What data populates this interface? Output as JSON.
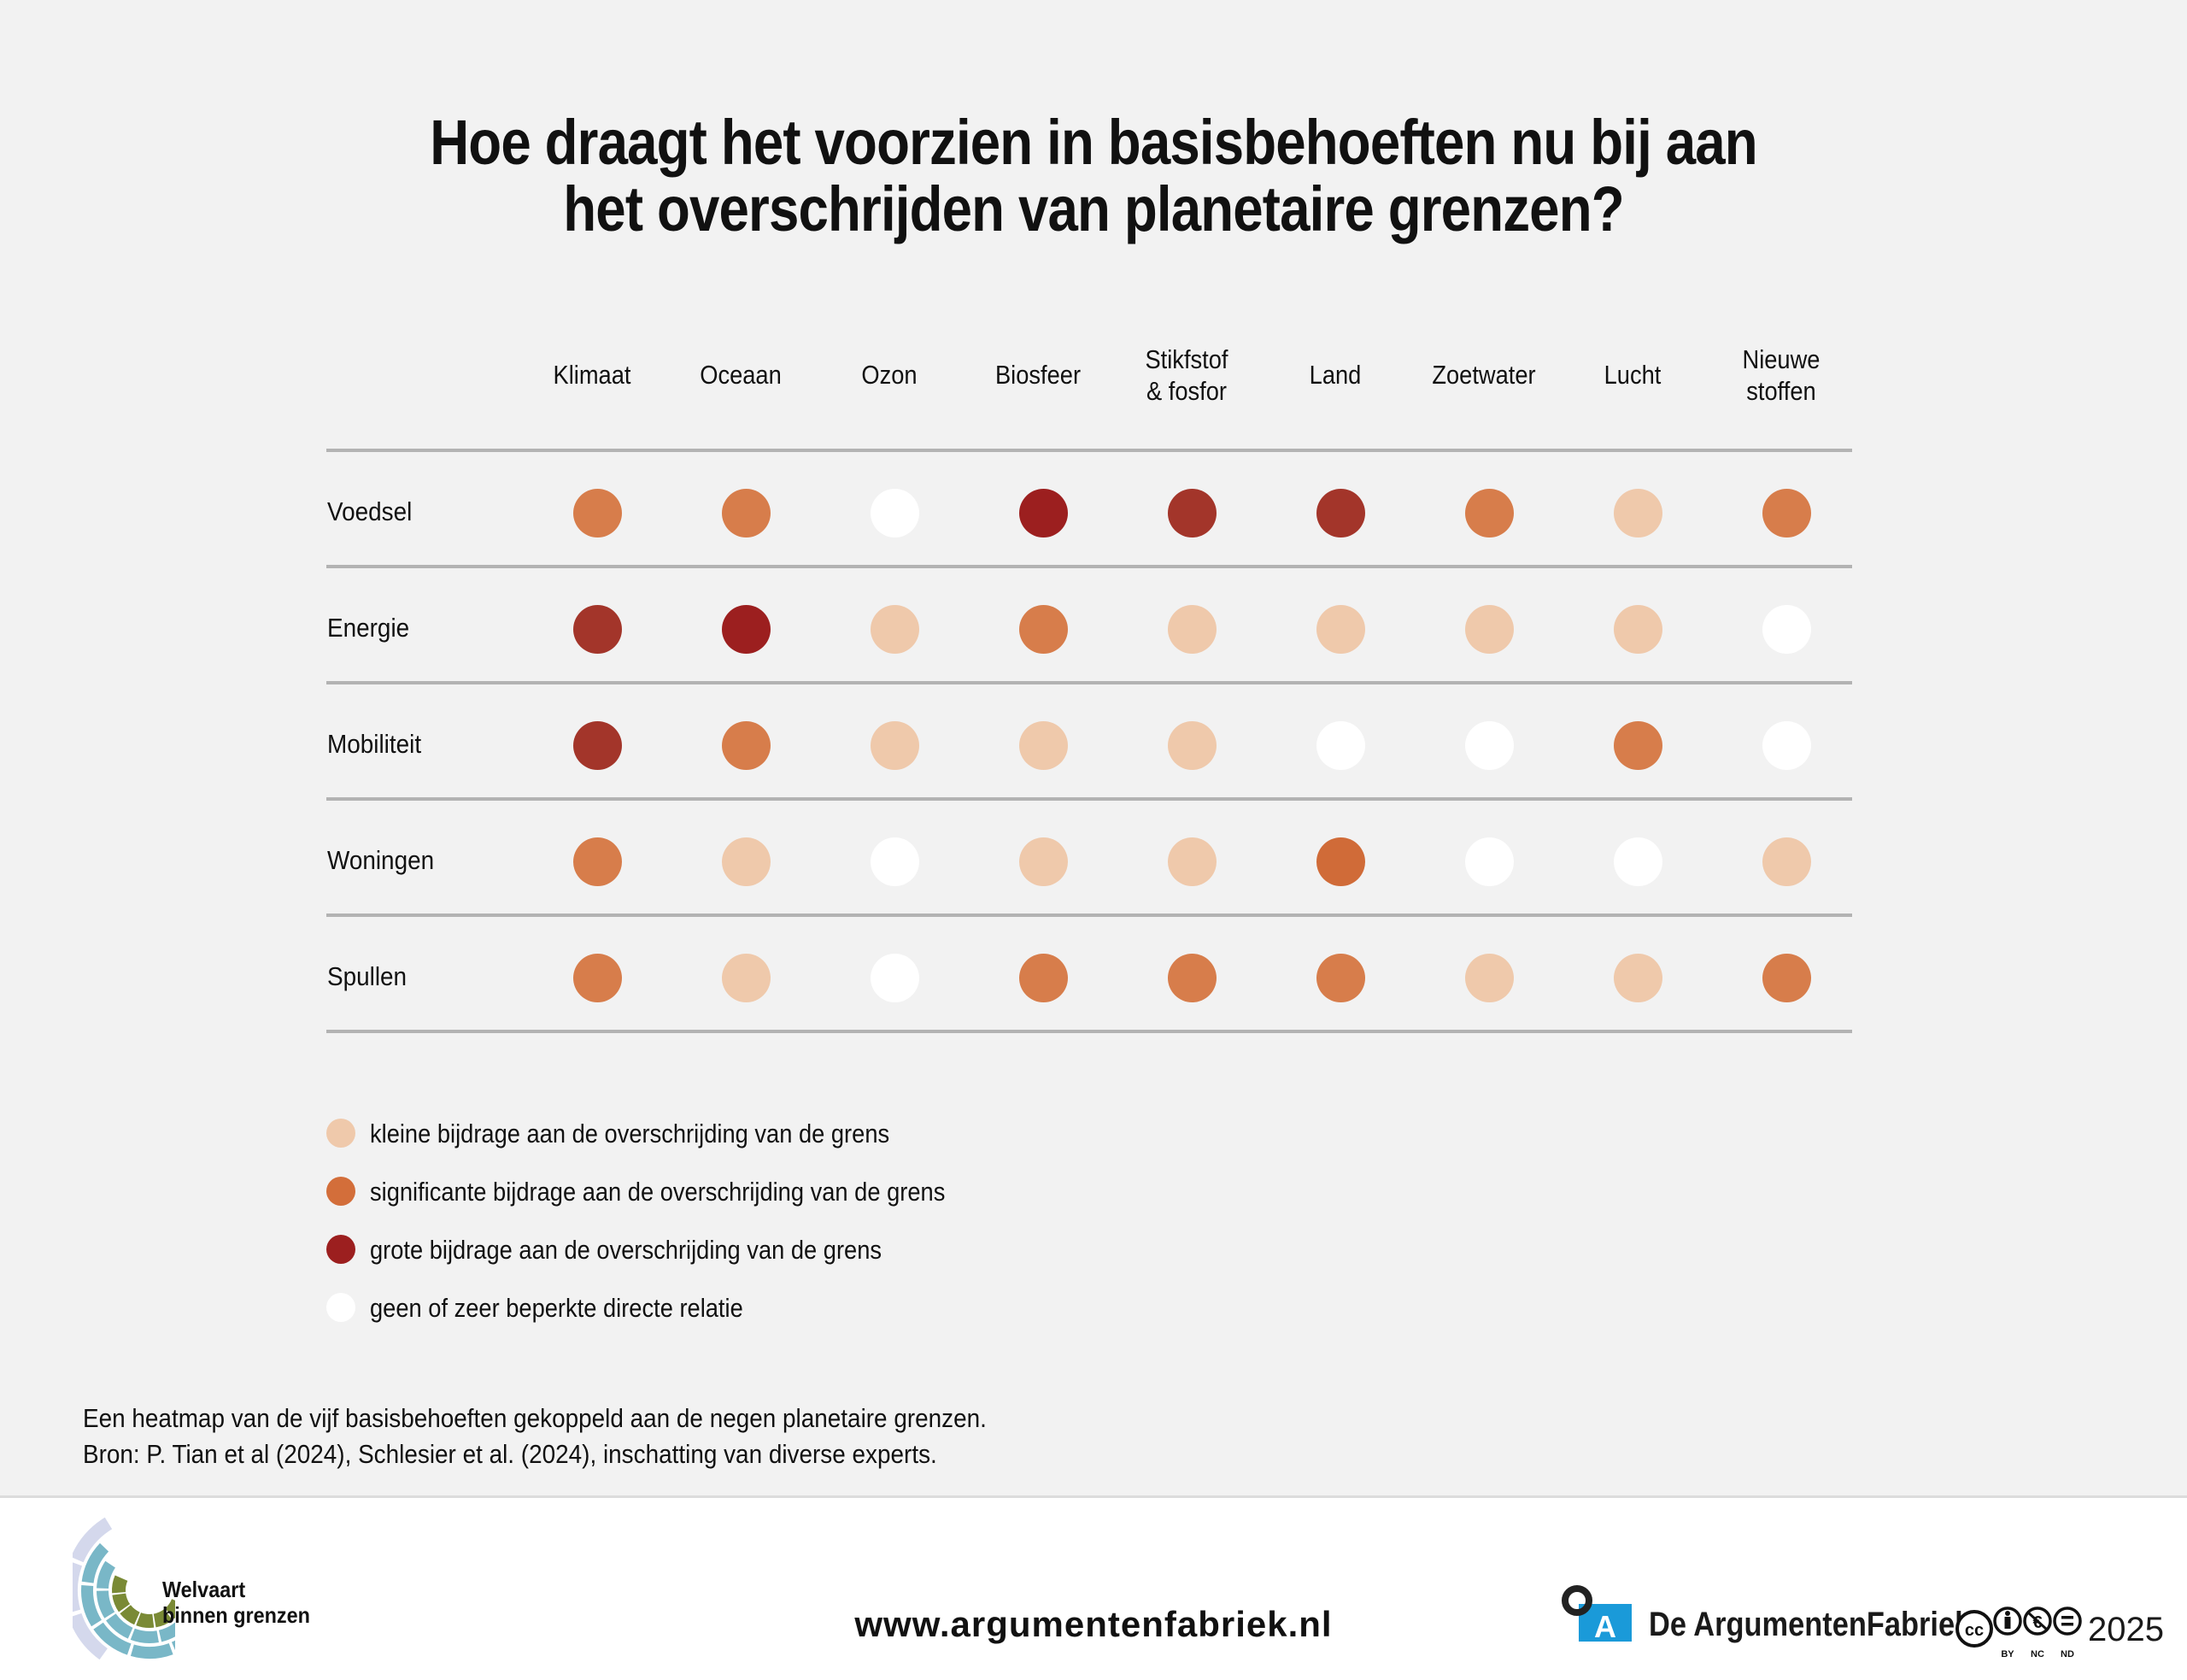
{
  "title": {
    "line1": "Hoe draagt het voorzien in basisbehoeften nu bij aan",
    "line2": "het overschrijden van planetaire grenzen?"
  },
  "chart_data": {
    "type": "heatmap",
    "title": "Hoe draagt het voorzien in basisbehoeften nu bij aan het overschrijden van planetaire grenzen?",
    "columns": [
      {
        "label_lines": [
          "Klimaat"
        ]
      },
      {
        "label_lines": [
          "Oceaan"
        ]
      },
      {
        "label_lines": [
          "Ozon"
        ]
      },
      {
        "label_lines": [
          "Biosfeer"
        ]
      },
      {
        "label_lines": [
          "Stikfstof",
          "& fosfor"
        ]
      },
      {
        "label_lines": [
          "Land"
        ]
      },
      {
        "label_lines": [
          "Zoetwater"
        ]
      },
      {
        "label_lines": [
          "Lucht"
        ]
      },
      {
        "label_lines": [
          "Nieuwe",
          "stoffen"
        ]
      }
    ],
    "rows": [
      "Voedsel",
      "Energie",
      "Mobiliteit",
      "Woningen",
      "Spullen"
    ],
    "levels": {
      "none": {
        "label": "geen of zeer beperkte directe relatie",
        "color": "#ffffff"
      },
      "small": {
        "label": "kleine bijdrage aan de overschrijding van de grens",
        "color": "#efc9ab"
      },
      "significant": {
        "label": "significante bijdrage aan de overschrijding van de grens",
        "color": "#d77d4b"
      },
      "large": {
        "label": "grote bijdrage aan de overschrijding van de grens",
        "color": "#9c1f1f"
      }
    },
    "cell_colors": {
      "significant_alt": "#d06b38",
      "large_alt": "#a3352a"
    },
    "values": [
      [
        "significant",
        "significant",
        "none",
        "large",
        "large_alt",
        "large_alt",
        "significant",
        "small",
        "significant"
      ],
      [
        "large_alt",
        "large",
        "small",
        "significant",
        "small",
        "small",
        "small",
        "small",
        "none"
      ],
      [
        "large_alt",
        "significant",
        "small",
        "small",
        "small",
        "none",
        "none",
        "significant",
        "none"
      ],
      [
        "significant",
        "small",
        "none",
        "small",
        "small",
        "significant_alt",
        "none",
        "none",
        "small"
      ],
      [
        "significant",
        "small",
        "none",
        "significant",
        "significant",
        "significant",
        "small",
        "small",
        "significant"
      ]
    ],
    "legend": [
      {
        "label": "kleine bijdrage aan de overschrijding van de grens",
        "color": "#efc9ab"
      },
      {
        "label": "significante bijdrage aan de overschrijding van de grens",
        "color": "#d36e3a"
      },
      {
        "label": "grote bijdrage aan de overschrijding van de grens",
        "color": "#9c1f1f"
      },
      {
        "label": "geen of zeer beperkte directe relatie",
        "color": "#ffffff"
      }
    ],
    "legend_placement": "bottom-left",
    "grid": true
  },
  "caption": {
    "line1": "Een heatmap van de vijf basisbehoeften gekoppeld aan de negen planetaire grenzen.",
    "line2": "Bron: P. Tian et al (2024), Schlesier et al. (2024), inschatting van diverse experts."
  },
  "footer": {
    "left_logo_line1": "Welvaart",
    "left_logo_line2": "binnen grenzen",
    "url": "www.argumentenfabriek.nl",
    "brand_letter": "A",
    "brand_name": "De ArgumentenFabriek",
    "license_labels": [
      "BY",
      "NC",
      "ND"
    ],
    "license_cc": "cc",
    "year": "2025"
  },
  "colors": {
    "background": "#f2f2f2",
    "grid_line": "#b3b3b3",
    "brand_blue": "#1a9ad9"
  }
}
